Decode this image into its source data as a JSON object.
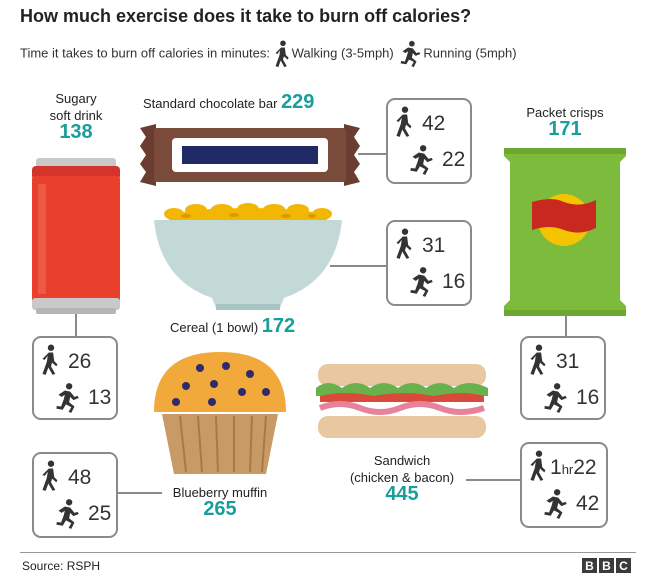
{
  "title": "How much exercise does it take to burn off calories?",
  "subtitle": {
    "prefix": "Time it takes to burn off calories in minutes:",
    "walking": "Walking (3-5mph)",
    "running": "Running (5mph)"
  },
  "foods": {
    "soft_drink": {
      "name_line1": "Sugary",
      "name_line2": "soft drink",
      "calories": "138",
      "walk": "26",
      "run": "13"
    },
    "chocolate": {
      "name": "Standard chocolate bar",
      "calories": "229",
      "walk": "42",
      "run": "22"
    },
    "crisps": {
      "name": "Packet crisps",
      "calories": "171",
      "walk": "31",
      "run": "16"
    },
    "cereal": {
      "name": "Cereal (1 bowl)",
      "calories": "172",
      "walk": "31",
      "run": "16"
    },
    "muffin": {
      "name": "Blueberry muffin",
      "calories": "265",
      "walk": "48",
      "run": "25"
    },
    "sandwich": {
      "name_line1": "Sandwich",
      "name_line2": "(chicken & bacon)",
      "calories": "445",
      "walk_hr": "1",
      "walk_hr_unit": "hr",
      "walk_min": "22",
      "run": "42"
    }
  },
  "footer": {
    "source": "Source: RSPH",
    "logo": [
      "B",
      "B",
      "C"
    ]
  },
  "colors": {
    "accent": "#1a9e9b",
    "box_border": "#8a8a8a",
    "can": "#e8402c",
    "crisps": "#7dbb3c",
    "wrapper": "#7a4a3a"
  }
}
